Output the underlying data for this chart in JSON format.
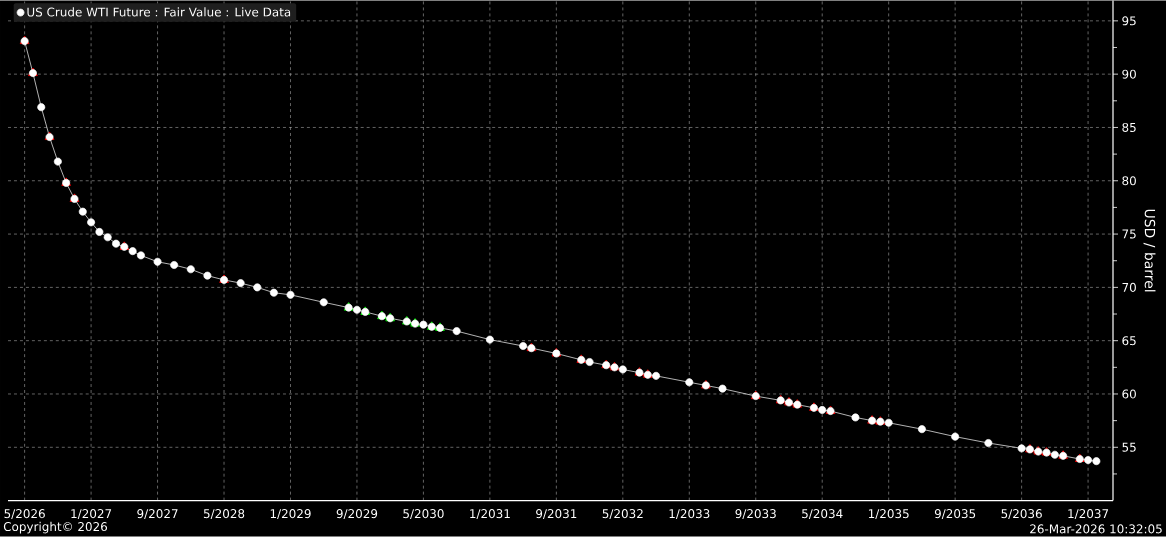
{
  "chart_data": {
    "type": "line",
    "ylabel": "USD / barrel",
    "x": [
      "2026-05",
      "2026-06",
      "2026-07",
      "2026-08",
      "2026-09",
      "2026-10",
      "2026-11",
      "2026-12",
      "2027-01",
      "2027-02",
      "2027-03",
      "2027-04",
      "2027-05",
      "2027-06",
      "2027-07",
      "2027-09",
      "2027-11",
      "2028-01",
      "2028-03",
      "2028-05",
      "2028-07",
      "2028-09",
      "2028-11",
      "2029-01",
      "2029-05",
      "2029-08",
      "2029-09",
      "2029-10",
      "2029-12",
      "2030-01",
      "2030-03",
      "2030-04",
      "2030-05",
      "2030-06",
      "2030-07",
      "2030-09",
      "2031-01",
      "2031-05",
      "2031-06",
      "2031-09",
      "2031-12",
      "2032-01",
      "2032-03",
      "2032-04",
      "2032-05",
      "2032-07",
      "2032-08",
      "2032-09",
      "2033-01",
      "2033-03",
      "2033-05",
      "2033-09",
      "2033-12",
      "2034-01",
      "2034-02",
      "2034-04",
      "2034-05",
      "2034-06",
      "2034-09",
      "2034-11",
      "2034-12",
      "2035-01",
      "2035-05",
      "2035-09",
      "2036-01",
      "2036-05",
      "2036-06",
      "2036-07",
      "2036-08",
      "2036-09",
      "2036-10",
      "2036-12",
      "2037-01",
      "2037-02"
    ],
    "series": [
      {
        "type": "scatter",
        "marker": "triangle",
        "color": "#ff0000",
        "x": [
          "2026-05",
          "2026-06",
          "2026-08",
          "2026-10",
          "2026-11",
          "2027-05",
          "2028-05",
          "2031-06",
          "2031-09",
          "2031-12",
          "2032-03",
          "2032-04",
          "2032-07",
          "2032-08",
          "2033-03",
          "2033-09",
          "2033-12",
          "2034-01",
          "2034-02",
          "2034-04",
          "2034-06",
          "2034-11",
          "2034-12",
          "2036-06",
          "2036-07",
          "2036-08",
          "2036-10",
          "2036-12"
        ],
        "values": [
          93.1,
          90.1,
          84.1,
          79.8,
          78.3,
          73.8,
          70.7,
          64.3,
          63.8,
          63.2,
          62.7,
          62.5,
          62.0,
          61.8,
          60.8,
          59.8,
          59.4,
          59.2,
          59.0,
          58.7,
          58.4,
          57.5,
          57.4,
          54.8,
          54.6,
          54.5,
          54.2,
          53.9
        ]
      },
      {
        "type": "scatter",
        "marker": "triangle",
        "color": "#00ff00",
        "x": [
          "2029-08",
          "2029-10",
          "2029-12",
          "2030-01",
          "2030-03",
          "2030-04",
          "2030-06",
          "2030-07"
        ],
        "values": [
          68.1,
          67.7,
          67.3,
          67.1,
          66.8,
          66.6,
          66.3,
          66.2
        ]
      },
      {
        "name": "US Crude WTI Future : Fair Value : Live Data",
        "color": "#ffffff",
        "values": [
          93.1,
          90.1,
          86.9,
          84.1,
          81.8,
          79.8,
          78.3,
          77.1,
          76.1,
          75.2,
          74.7,
          74.1,
          73.8,
          73.4,
          73.0,
          72.4,
          72.1,
          71.7,
          71.1,
          70.7,
          70.4,
          70.0,
          69.5,
          69.3,
          68.6,
          68.1,
          67.9,
          67.7,
          67.3,
          67.1,
          66.8,
          66.6,
          66.5,
          66.3,
          66.2,
          65.9,
          65.1,
          64.5,
          64.3,
          63.8,
          63.2,
          63.0,
          62.7,
          62.5,
          62.3,
          62.0,
          61.8,
          61.7,
          61.1,
          60.8,
          60.5,
          59.8,
          59.4,
          59.2,
          59.0,
          58.7,
          58.5,
          58.4,
          57.8,
          57.5,
          57.4,
          57.3,
          56.7,
          56.0,
          55.4,
          54.9,
          54.8,
          54.6,
          54.5,
          54.3,
          54.2,
          53.9,
          53.8,
          53.7
        ]
      }
    ],
    "marker": "circle",
    "line_style": "solid",
    "xlim": [
      "2026-03",
      "2037-04"
    ],
    "ylim": [
      50,
      96.9
    ],
    "xticks": [
      {
        "value": "2026-05",
        "label": "5/2026"
      },
      {
        "value": "2027-01",
        "label": "1/2027"
      },
      {
        "value": "2027-09",
        "label": "9/2027"
      },
      {
        "value": "2028-05",
        "label": "5/2028"
      },
      {
        "value": "2029-01",
        "label": "1/2029"
      },
      {
        "value": "2029-09",
        "label": "9/2029"
      },
      {
        "value": "2030-05",
        "label": "5/2030"
      },
      {
        "value": "2031-01",
        "label": "1/2031"
      },
      {
        "value": "2031-09",
        "label": "9/2031"
      },
      {
        "value": "2032-05",
        "label": "5/2032"
      },
      {
        "value": "2033-01",
        "label": "1/2033"
      },
      {
        "value": "2033-09",
        "label": "9/2033"
      },
      {
        "value": "2034-05",
        "label": "5/2034"
      },
      {
        "value": "2035-01",
        "label": "1/2035"
      },
      {
        "value": "2035-09",
        "label": "9/2035"
      },
      {
        "value": "2036-05",
        "label": "5/2036"
      },
      {
        "value": "2037-01",
        "label": "1/2037"
      }
    ],
    "yticks": [
      {
        "value": 52.5,
        "label": null
      },
      55,
      {
        "value": 57.5,
        "label": null
      },
      60,
      {
        "value": 62.5,
        "label": null
      },
      65,
      {
        "value": 67.5,
        "label": null
      },
      70,
      {
        "value": 72.5,
        "label": null
      },
      75,
      {
        "value": 77.5,
        "label": null
      },
      80,
      {
        "value": 82.5,
        "label": null
      },
      85,
      {
        "value": 87.5,
        "label": null
      },
      90,
      {
        "value": 92.5,
        "label": null
      },
      95
    ],
    "grid": true,
    "legend": "top left",
    "annotations": [
      "Copyright© 2026",
      "26-Mar-2026 10:32:05"
    ]
  }
}
